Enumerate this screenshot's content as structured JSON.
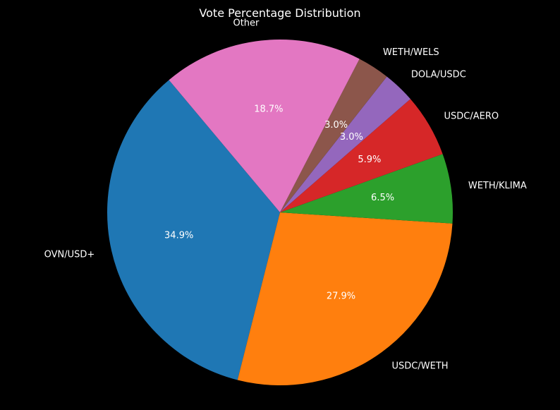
{
  "chart_data": {
    "type": "pie",
    "title": "Vote Percentage Distribution",
    "start_angle_deg": 130,
    "direction": "counterclockwise",
    "slices": [
      {
        "label": "OVN/USD+",
        "value": 34.9,
        "pct_label": "34.9%",
        "color": "#1f77b4"
      },
      {
        "label": "USDC/WETH",
        "value": 27.9,
        "pct_label": "27.9%",
        "color": "#ff7f0e"
      },
      {
        "label": "WETH/KLIMA",
        "value": 6.5,
        "pct_label": "6.5%",
        "color": "#2ca02c"
      },
      {
        "label": "USDC/AERO",
        "value": 5.9,
        "pct_label": "5.9%",
        "color": "#d62728"
      },
      {
        "label": "DOLA/USDC",
        "value": 3.0,
        "pct_label": "3.0%",
        "color": "#9467bd"
      },
      {
        "label": "WETH/WELS",
        "value": 3.0,
        "pct_label": "3.0%",
        "color": "#8c564b"
      },
      {
        "label": "Other",
        "value": 18.7,
        "pct_label": "18.7%",
        "color": "#e377c2"
      }
    ]
  }
}
